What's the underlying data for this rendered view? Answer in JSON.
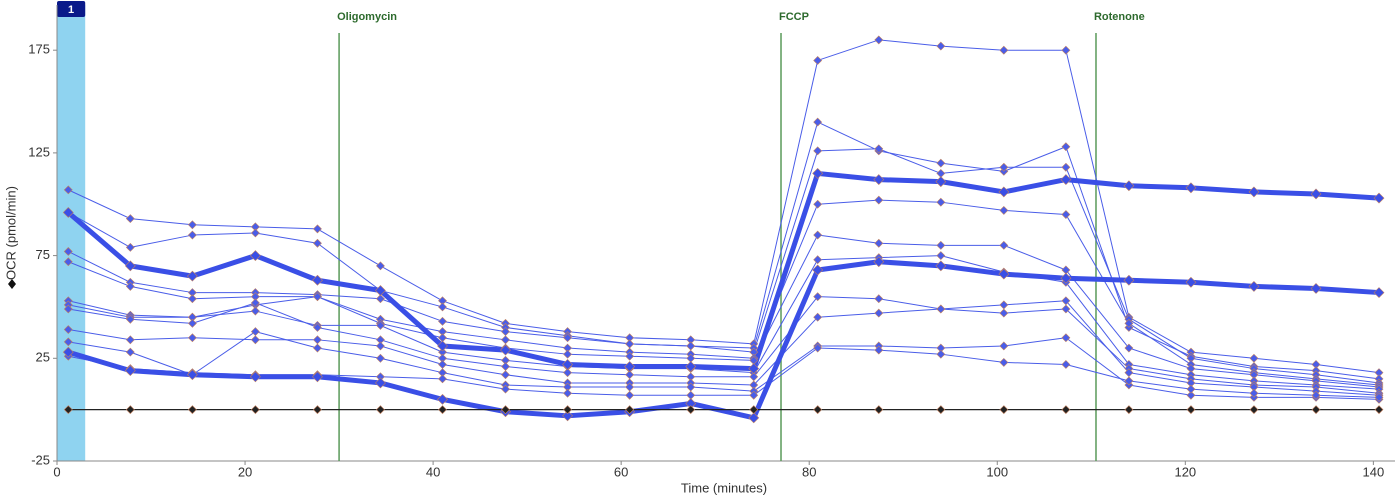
{
  "chart_data": {
    "type": "line",
    "x_label": "Time (minutes)",
    "y_label": "OCR (pmol/min)",
    "xlim": [
      0,
      142.3
    ],
    "ylim": [
      -25,
      197
    ],
    "xticks": [
      0,
      20,
      40,
      60,
      80,
      100,
      120,
      140
    ],
    "yticks": [
      -25,
      25,
      75,
      125,
      175
    ],
    "band": {
      "label": "1",
      "range": [
        0,
        3
      ],
      "color": "#8fd3f0"
    },
    "injections": [
      {
        "label": "Oligomycin",
        "x": 30
      },
      {
        "label": "FCCP",
        "x": 77
      },
      {
        "label": "Rotenone",
        "x": 110.5
      }
    ],
    "x": [
      1.2,
      7.8,
      14.4,
      21.1,
      27.7,
      34.4,
      41,
      47.7,
      54.3,
      60.9,
      67.4,
      74.1,
      80.9,
      87.4,
      94,
      100.7,
      107.3,
      114,
      120.6,
      127.3,
      133.9,
      140.6
    ],
    "series": [
      {
        "color": "#4a5de8",
        "width": 1,
        "values": [
          107,
          93,
          90,
          89,
          88,
          70,
          53,
          42,
          38,
          35,
          34,
          32,
          170,
          180,
          177,
          175,
          175,
          45,
          28,
          25,
          22,
          18
        ]
      },
      {
        "color": "#4a5de8",
        "width": 1,
        "values": [
          96,
          79,
          85,
          86,
          81,
          58,
          50,
          40,
          36,
          32,
          31,
          30,
          140,
          126,
          120,
          116,
          128,
          40,
          26,
          21,
          19,
          15
        ]
      },
      {
        "color": "#4a5de8",
        "width": 1,
        "values": [
          77,
          62,
          57,
          57,
          56,
          54,
          43,
          38,
          35,
          32,
          31,
          28,
          126,
          127,
          115,
          118,
          118,
          44,
          25,
          20,
          17,
          13
        ]
      },
      {
        "color": "#4a5de8",
        "width": 1,
        "values": [
          72,
          60,
          54,
          55,
          55,
          44,
          38,
          34,
          30,
          28,
          27,
          25,
          100,
          102,
          101,
          97,
          95,
          42,
          22,
          18,
          15,
          12
        ]
      },
      {
        "color": "#4a5de8",
        "width": 1,
        "values": [
          53,
          46,
          45,
          51,
          55,
          42,
          35,
          30,
          27,
          26,
          25,
          24,
          85,
          81,
          80,
          80,
          68,
          30,
          20,
          17,
          14,
          11
        ]
      },
      {
        "color": "#4a5de8",
        "width": 1,
        "values": [
          51,
          45,
          45,
          48,
          41,
          41,
          28,
          24,
          21,
          20,
          20,
          18,
          73,
          74,
          75,
          67,
          62,
          22,
          17,
          14,
          12,
          10
        ]
      },
      {
        "color": "#4a5de8",
        "width": 1,
        "values": [
          49,
          44,
          42,
          52,
          40,
          34,
          25,
          21,
          18,
          17,
          16,
          16,
          55,
          54,
          49,
          47,
          49,
          20,
          15,
          12,
          11,
          8
        ]
      },
      {
        "color": "#4a5de8",
        "width": 1,
        "values": [
          39,
          34,
          35,
          34,
          34,
          31,
          22,
          17,
          13,
          13,
          13,
          12,
          45,
          47,
          49,
          51,
          53,
          18,
          13,
          11,
          9,
          7
        ]
      },
      {
        "color": "#4a5de8",
        "width": 1,
        "values": [
          33,
          28,
          17,
          38,
          30,
          25,
          18,
          12,
          11,
          11,
          11,
          9,
          31,
          31,
          30,
          31,
          35,
          12,
          7,
          6,
          6,
          5
        ]
      },
      {
        "color": "#4a5de8",
        "width": 1,
        "values": [
          26,
          20,
          18,
          17,
          17,
          16,
          15,
          10,
          8,
          7,
          7,
          7,
          30,
          29,
          27,
          23,
          22,
          14,
          10,
          8,
          7,
          6
        ]
      },
      {
        "color": "#3a4fe6",
        "width": 5,
        "values": [
          96,
          70,
          65,
          75,
          63,
          58,
          31,
          29,
          22,
          21,
          21,
          20,
          115,
          112,
          111,
          106,
          112,
          109,
          108,
          106,
          105,
          103
        ]
      },
      {
        "color": "#3a4fe6",
        "width": 5,
        "values": [
          28,
          19,
          17,
          16,
          16,
          13,
          5,
          -1,
          -3,
          -1,
          3,
          -4,
          68,
          72,
          70,
          66,
          64,
          63,
          62,
          60,
          59,
          57
        ]
      },
      {
        "color": "#222222",
        "width": 1.2,
        "values": [
          0,
          0,
          0,
          0,
          0,
          0,
          0,
          0,
          0,
          0,
          0,
          0,
          0,
          0,
          0,
          0,
          0,
          0,
          0,
          0,
          0,
          0
        ]
      }
    ]
  }
}
